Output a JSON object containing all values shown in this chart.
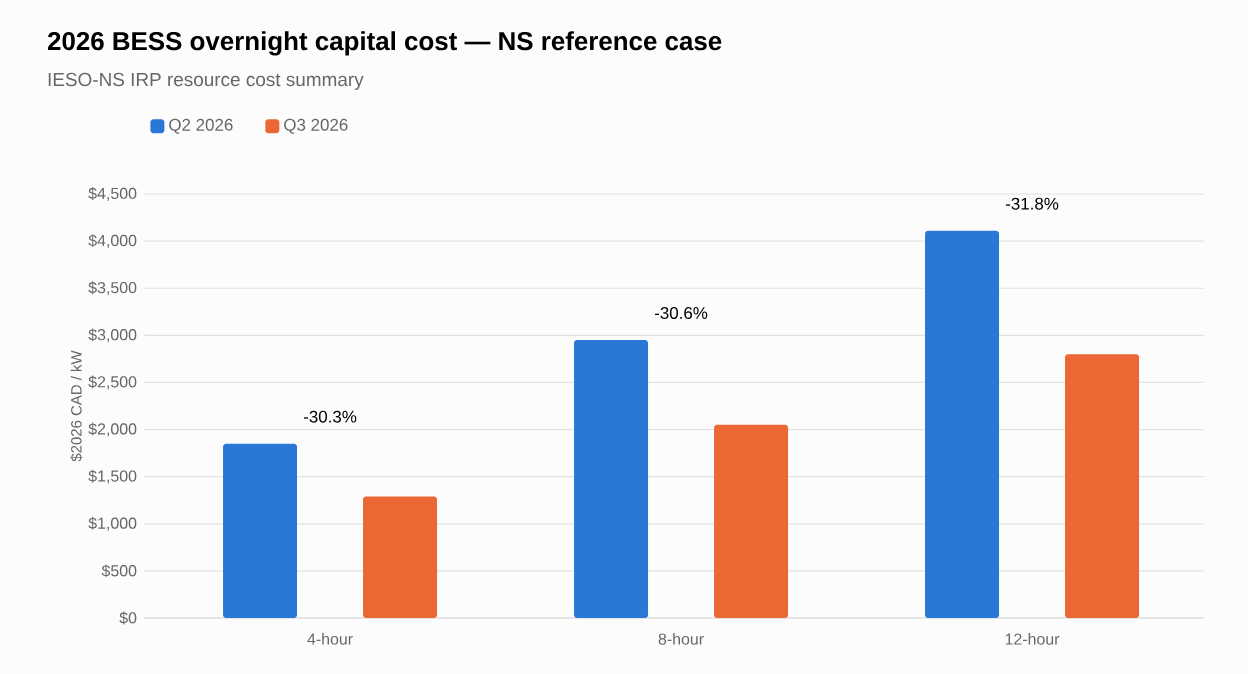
{
  "chart_data": {
    "type": "bar",
    "title": "2026 BESS overnight capital cost — NS reference case",
    "subtitle": "IESO-NS IRP resource cost summary",
    "ylabel": "$2026 CAD / kW",
    "categories": [
      "4-hour",
      "8-hour",
      "12-hour"
    ],
    "series": [
      {
        "name": "Q2 2026",
        "color": "#2a78d6",
        "values": [
          1850,
          2950,
          4110
        ]
      },
      {
        "name": "Q3 2026",
        "color": "#eb6834",
        "values": [
          1290,
          2050,
          2800
        ]
      }
    ],
    "ylim": [
      0,
      4500
    ],
    "yticks": [
      {
        "value": 0,
        "label": "$0"
      },
      {
        "value": 500,
        "label": "$500"
      },
      {
        "value": 1000,
        "label": "$1,000"
      },
      {
        "value": 1500,
        "label": "$1,500"
      },
      {
        "value": 2000,
        "label": "$2,000"
      },
      {
        "value": 2500,
        "label": "$2,500"
      },
      {
        "value": 3000,
        "label": "$3,000"
      },
      {
        "value": 3500,
        "label": "$3,500"
      },
      {
        "value": 4000,
        "label": "$4,000"
      },
      {
        "value": 4500,
        "label": "$4,500"
      }
    ],
    "annotations": [
      "-30.3%",
      "-30.6%",
      "-31.8%"
    ],
    "grid": "y",
    "legend": "top left"
  }
}
